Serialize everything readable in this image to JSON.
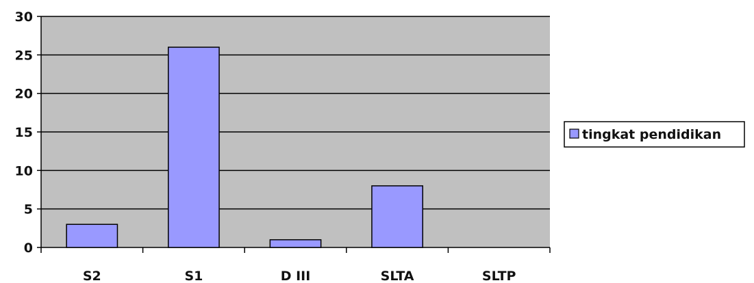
{
  "chart_data": {
    "type": "bar",
    "categories": [
      "S2",
      "S1",
      "D III",
      "SLTA",
      "SLTP"
    ],
    "series": [
      {
        "name": "tingkat pendidikan",
        "values": [
          3,
          26,
          1,
          8,
          0
        ]
      }
    ],
    "ylim": [
      0,
      30
    ],
    "yticks": [
      0,
      5,
      10,
      15,
      20,
      25,
      30
    ],
    "grid": true,
    "legend": "right",
    "colors": {
      "plot_background": "#c0c0c0",
      "bar_fill": "#9999ff",
      "bar_stroke": "#000000",
      "gridline": "#000000"
    }
  }
}
